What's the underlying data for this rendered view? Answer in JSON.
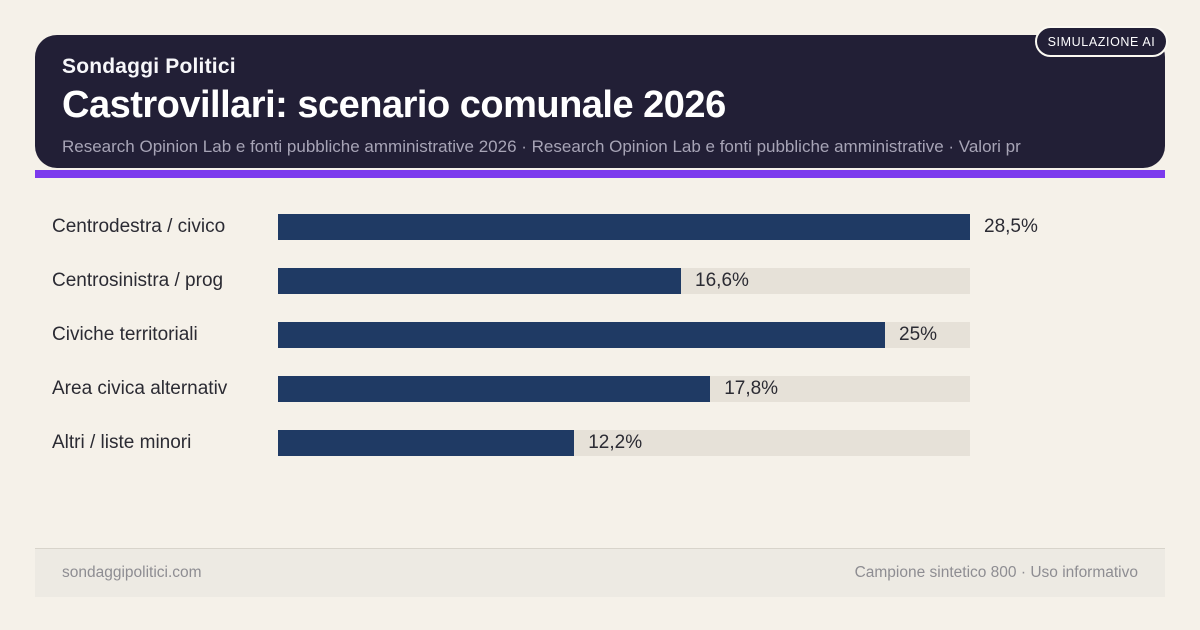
{
  "page": {
    "background": "#f5f1e9",
    "accent_color": "#7c3aed",
    "header_background": "#221f36"
  },
  "badge": {
    "label": "SIMULAZIONE AI"
  },
  "header": {
    "kicker": "Sondaggi Politici",
    "title": "Castrovillari: scenario comunale 2026",
    "subtitle": "Research Opinion Lab e fonti pubbliche amministrative 2026 · Research Opinion Lab e fonti pubbliche amministrative · Valori pr"
  },
  "chart_data": {
    "type": "bar",
    "orientation": "horizontal",
    "title": "Castrovillari: scenario comunale 2026",
    "categories": [
      "Centrodestra / civico",
      "Centrosinistra / prog",
      "Civiche territoriali",
      "Area civica alternativ",
      "Altri / liste minori"
    ],
    "values": [
      28.5,
      16.6,
      25,
      17.8,
      12.2
    ],
    "value_labels": [
      "28,5%",
      "16,6%",
      "25%",
      "17,8%",
      "12,2%"
    ],
    "axis_max": 28.5,
    "bar_color": "#1f3a64",
    "track_color": "#e6e1d8",
    "grid": false,
    "legend": false
  },
  "footer": {
    "left": "sondaggipolitici.com",
    "right": "Campione sintetico 800 · Uso informativo"
  }
}
